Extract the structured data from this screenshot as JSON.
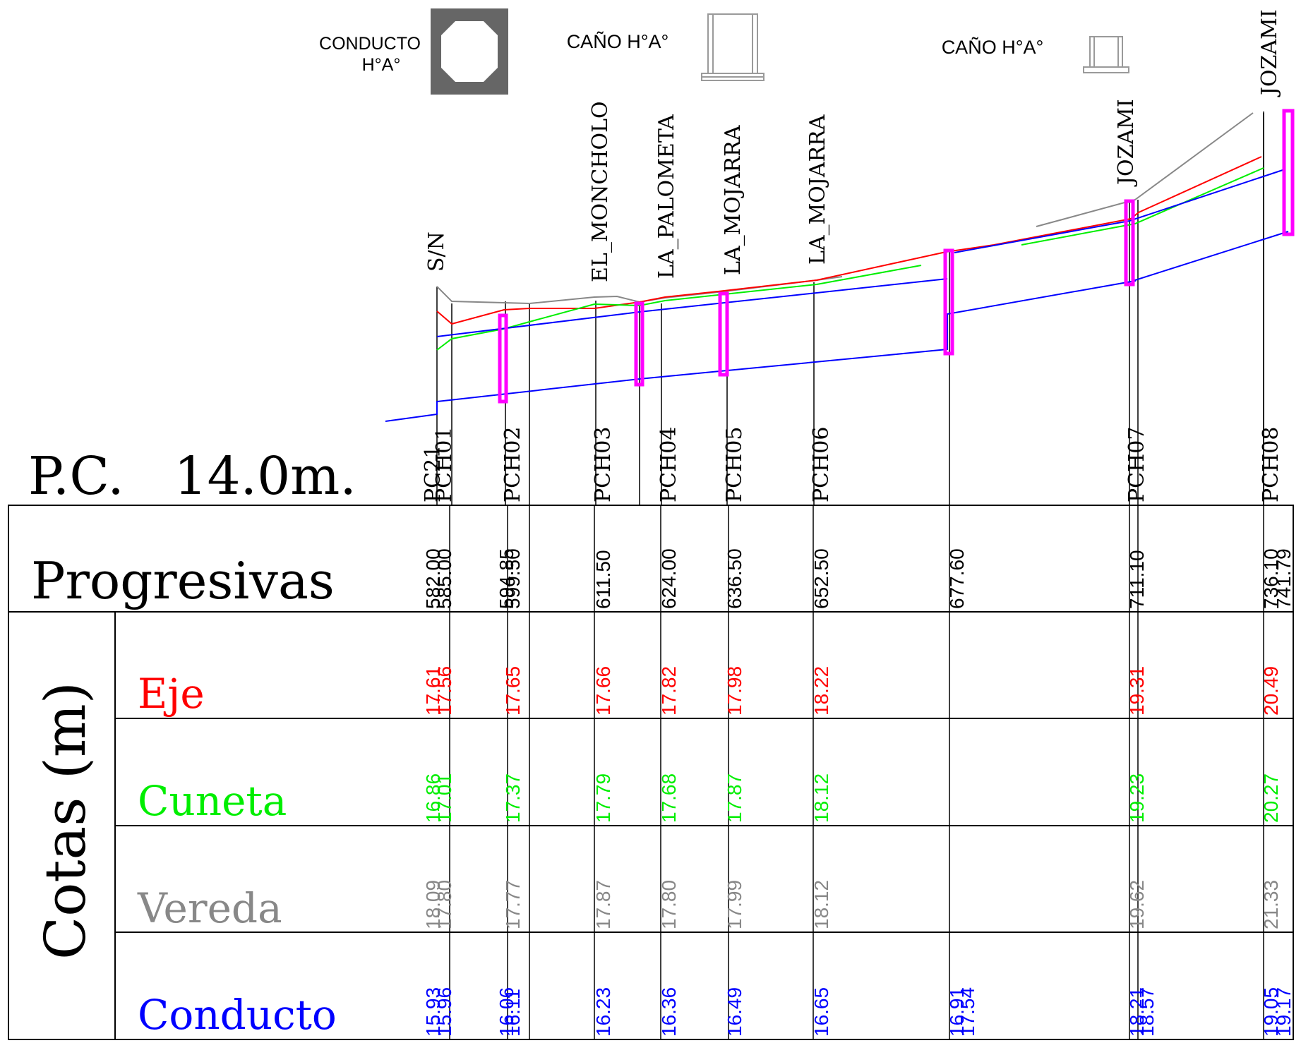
{
  "legend": {
    "conducto_label_1": "CONDUCTO",
    "conducto_label_2": "H°A°",
    "cano_label_1": "CAÑO H°A°",
    "cano_label_2": "CAÑO H°A°"
  },
  "plane_of_comparison": "P.C.   14.0m.",
  "row_labels": {
    "progresivas": "Progresivas",
    "cotas": "Cotas (m)",
    "eje": "Eje",
    "cuneta": "Cuneta",
    "vereda": "Vereda",
    "conducto": "Conducto"
  },
  "colors": {
    "eje": "#ff0000",
    "cuneta": "#00ee00",
    "vereda": "#888888",
    "conducto": "#0000ff",
    "chamber": "#ff00ff",
    "grid": "#000000"
  },
  "street_names": [
    {
      "name": "S/N",
      "prog": 585.0
    },
    {
      "name": "EL_MONCHOLO",
      "prog": 611.5
    },
    {
      "name": "LA_PALOMETA",
      "prog": 624.0
    },
    {
      "name": "LA_MOJARRA",
      "prog": 636.5
    },
    {
      "name": "LA_MOJARRA",
      "prog": 652.5
    },
    {
      "name": "JOZAMI",
      "prog": 711.1
    },
    {
      "name": "JOZAMI",
      "prog": 741.79
    }
  ],
  "stations": [
    {
      "label": "PC21",
      "prog": "582.00",
      "eje": "17.61",
      "cuneta": "16.86",
      "vereda": "18.09",
      "conducto": "15.93"
    },
    {
      "label": "PCH01",
      "prog": "585.00",
      "eje": "17.56",
      "cuneta": "17.01",
      "vereda": "17.80",
      "conducto": "15.96"
    },
    {
      "label": "",
      "prog": "594.85",
      "eje": "",
      "cuneta": "",
      "vereda": "",
      "conducto": "16.06"
    },
    {
      "label": "PCH02",
      "prog": "599.50",
      "eje": "17.65",
      "cuneta": "17.37",
      "vereda": "17.77",
      "conducto": "16.11"
    },
    {
      "label": "PCH03",
      "prog": "611.50",
      "eje": "17.66",
      "cuneta": "17.79",
      "vereda": "17.87",
      "conducto": "16.23"
    },
    {
      "label": "PCH04",
      "prog": "624.00",
      "eje": "17.82",
      "cuneta": "17.68",
      "vereda": "17.80",
      "conducto": "16.36"
    },
    {
      "label": "PCH05",
      "prog": "636.50",
      "eje": "17.98",
      "cuneta": "17.87",
      "vereda": "17.99",
      "conducto": "16.49"
    },
    {
      "label": "PCH06",
      "prog": "652.50",
      "eje": "18.22",
      "cuneta": "18.12",
      "vereda": "18.12",
      "conducto": "16.65"
    },
    {
      "label": "",
      "prog": "677.60",
      "eje": "",
      "cuneta": "",
      "vereda": "",
      "conducto": "16.91"
    },
    {
      "label": "",
      "prog": "",
      "eje": "",
      "cuneta": "",
      "vereda": "",
      "conducto": "17.54"
    },
    {
      "label": "PCH07",
      "prog": "711.10",
      "eje": "19.31",
      "cuneta": "19.23",
      "vereda": "19.62",
      "conducto": "18.21"
    },
    {
      "label": "",
      "prog": "",
      "eje": "",
      "cuneta": "",
      "vereda": "",
      "conducto": "18.57"
    },
    {
      "label": "PCH08",
      "prog": "736.10",
      "eje": "20.49",
      "cuneta": "20.27",
      "vereda": "21.33",
      "conducto": "19.05"
    },
    {
      "label": "",
      "prog": "741.79",
      "eje": "",
      "cuneta": "",
      "vereda": "",
      "conducto": "19.17"
    }
  ]
}
